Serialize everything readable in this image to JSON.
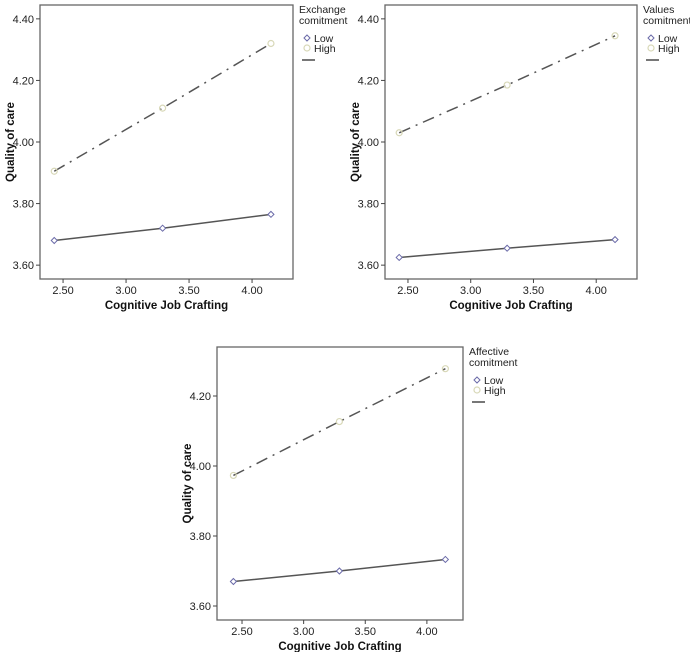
{
  "chart_data": [
    {
      "type": "line",
      "title": "",
      "xlabel": "Cognitive Job Crafting",
      "ylabel": "Quality of care",
      "xlim": [
        2.317,
        4.325
      ],
      "ylim": [
        3.555,
        4.445
      ],
      "xticks": [
        "2.50",
        "3.00",
        "3.50",
        "4.00"
      ],
      "xtick_values": [
        2.5,
        3.0,
        3.5,
        4.0
      ],
      "yticks": [
        "3.60",
        "3.80",
        "4.00",
        "4.20",
        "4.40"
      ],
      "ytick_values": [
        3.6,
        3.8,
        4.0,
        4.2,
        4.4
      ],
      "legend": {
        "title_lines": [
          "Exchange",
          "comitment"
        ],
        "placement": "right"
      },
      "x": [
        2.43,
        3.29,
        4.15
      ],
      "series": [
        {
          "name": "Low",
          "values": [
            3.68,
            3.72,
            3.765
          ],
          "color": "#555555",
          "marker_color": "#6a6aa8",
          "style": "solid"
        },
        {
          "name": "High",
          "values": [
            3.905,
            4.11,
            4.32
          ],
          "color": "#555555",
          "marker_color": "#d8d8b8",
          "style": "dashdot"
        }
      ]
    },
    {
      "type": "line",
      "title": "",
      "xlabel": "Cognitive Job Crafting",
      "ylabel": "Quality of care",
      "xlim": [
        2.317,
        4.325
      ],
      "ylim": [
        3.555,
        4.445
      ],
      "xticks": [
        "2.50",
        "3.00",
        "3.50",
        "4.00"
      ],
      "xtick_values": [
        2.5,
        3.0,
        3.5,
        4.0
      ],
      "yticks": [
        "3.60",
        "3.80",
        "4.00",
        "4.20",
        "4.40"
      ],
      "ytick_values": [
        3.6,
        3.8,
        4.0,
        4.2,
        4.4
      ],
      "legend": {
        "title_lines": [
          "Values",
          "comitment"
        ],
        "placement": "right"
      },
      "x": [
        2.43,
        3.29,
        4.15
      ],
      "series": [
        {
          "name": "Low",
          "values": [
            3.625,
            3.655,
            3.683
          ],
          "color": "#555555",
          "marker_color": "#6a6aa8",
          "style": "solid"
        },
        {
          "name": "High",
          "values": [
            4.03,
            4.185,
            4.345
          ],
          "color": "#555555",
          "marker_color": "#d8d8b8",
          "style": "dashdot"
        }
      ]
    },
    {
      "type": "line",
      "title": "",
      "xlabel": "Cognitive Job Crafting",
      "ylabel": "Quality of care",
      "xlim": [
        2.297,
        4.293
      ],
      "ylim": [
        3.56,
        4.34
      ],
      "xticks": [
        "2.50",
        "3.00",
        "3.50",
        "4.00"
      ],
      "xtick_values": [
        2.5,
        3.0,
        3.5,
        4.0
      ],
      "yticks": [
        "3.60",
        "3.80",
        "4.00",
        "4.20"
      ],
      "ytick_values": [
        3.6,
        3.8,
        4.0,
        4.2
      ],
      "legend": {
        "title_lines": [
          "Affective",
          "comitment"
        ],
        "placement": "right"
      },
      "x": [
        2.43,
        3.29,
        4.15
      ],
      "series": [
        {
          "name": "Low",
          "values": [
            3.67,
            3.7,
            3.733
          ],
          "color": "#555555",
          "marker_color": "#6a6aa8",
          "style": "solid"
        },
        {
          "name": "High",
          "values": [
            3.973,
            4.127,
            4.278
          ],
          "color": "#555555",
          "marker_color": "#d8d8b8",
          "style": "dashdot"
        }
      ]
    }
  ]
}
